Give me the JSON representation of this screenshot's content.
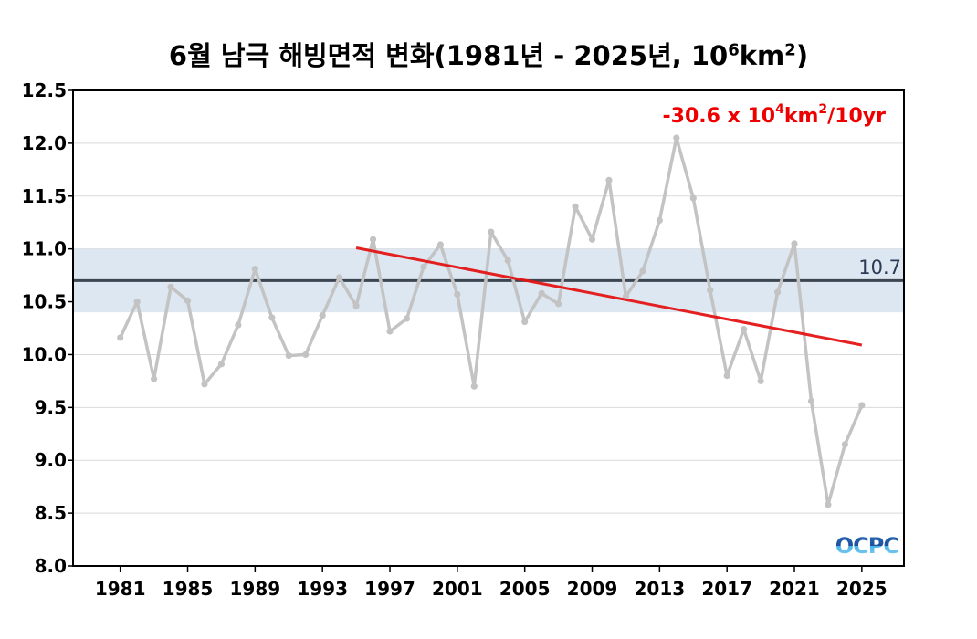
{
  "title": {
    "prefix": "6월 남극 해빙면적 변화(1981년 - 2025년, 10",
    "sup1": "6",
    "mid": "km",
    "sup2": "2",
    "suffix": ")"
  },
  "trend_label": {
    "prefix": "-30.6 x 10",
    "sup1": "4",
    "mid": "km",
    "sup2": "2",
    "suffix": "/10yr"
  },
  "mean_label": "10.7",
  "logo_text": "OCPC",
  "colors": {
    "series": "#c3c3c3",
    "trend": "#e41414",
    "mean_line": "#3d4551",
    "band": "#dce7f1",
    "grid": "#d9d9d9"
  },
  "chart_data": {
    "type": "line",
    "title": "6월 남극 해빙면적 변화(1981년 - 2025년, 10⁶km²)",
    "xlim": [
      1978.2,
      2027.5
    ],
    "ylim": [
      8.0,
      12.5
    ],
    "yticks": [
      "8.0",
      "8.5",
      "9.0",
      "9.5",
      "10.0",
      "10.5",
      "11.0",
      "11.5",
      "12.0",
      "12.5"
    ],
    "xticks": [
      "1981",
      "1985",
      "1989",
      "1993",
      "1997",
      "2001",
      "2005",
      "2009",
      "2013",
      "2017",
      "2021",
      "2025"
    ],
    "grid": true,
    "x": [
      1981,
      1982,
      1983,
      1984,
      1985,
      1986,
      1987,
      1988,
      1989,
      1990,
      1991,
      1992,
      1993,
      1994,
      1995,
      1996,
      1997,
      1998,
      1999,
      2000,
      2001,
      2002,
      2003,
      2004,
      2005,
      2006,
      2007,
      2008,
      2009,
      2010,
      2011,
      2012,
      2013,
      2014,
      2015,
      2016,
      2017,
      2018,
      2019,
      2020,
      2021,
      2022,
      2023,
      2024,
      2025
    ],
    "series": [
      {
        "values": [
          10.16,
          10.5,
          9.77,
          10.64,
          10.51,
          9.72,
          9.91,
          10.28,
          10.81,
          10.35,
          9.99,
          10.0,
          10.37,
          10.73,
          10.46,
          11.09,
          10.22,
          10.34,
          10.83,
          11.04,
          10.57,
          9.7,
          11.16,
          10.89,
          10.31,
          10.58,
          10.48,
          11.4,
          11.09,
          11.65,
          10.55,
          10.79,
          11.27,
          12.05,
          11.48,
          10.61,
          9.8,
          10.24,
          9.75,
          10.59,
          11.05,
          9.56,
          8.58,
          9.15,
          9.52
        ]
      }
    ],
    "mean": 10.7,
    "mean_band": [
      10.4,
      11.0
    ],
    "trend": {
      "x": [
        1995,
        2025
      ],
      "y": [
        11.01,
        10.09
      ]
    }
  }
}
